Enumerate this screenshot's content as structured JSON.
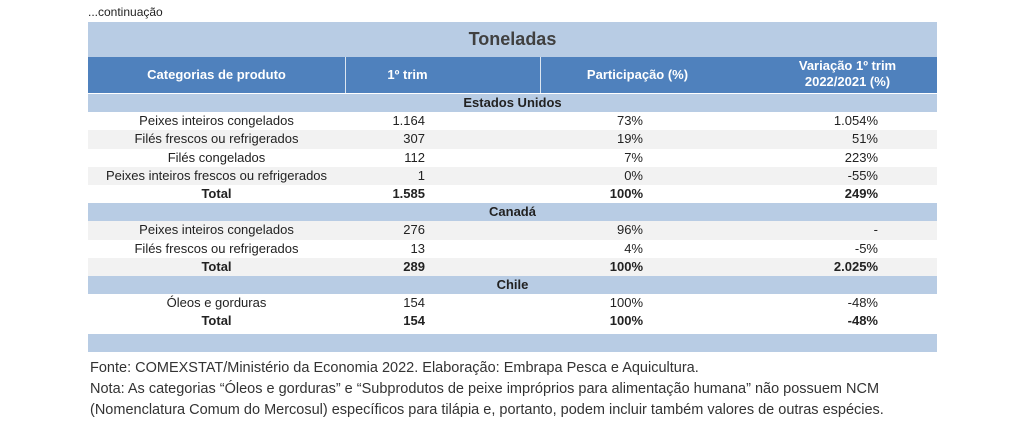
{
  "continuation": "...continuação",
  "table": {
    "title": "Toneladas",
    "columns": [
      "Categorias de produto",
      "1º trim",
      "Participação (%)",
      [
        "Variação 1º trim",
        "2022/2021 (%)"
      ]
    ],
    "sections": [
      {
        "name": "Estados Unidos",
        "rows": [
          [
            "Peixes inteiros congelados",
            "1.164",
            "73%",
            "1.054%"
          ],
          [
            "Filés frescos ou refrigerados",
            "307",
            "19%",
            "51%"
          ],
          [
            "Filés congelados",
            "112",
            "7%",
            "223%"
          ],
          [
            "Peixes inteiros frescos ou refrigerados",
            "1",
            "0%",
            "-55%"
          ]
        ],
        "total": [
          "Total",
          "1.585",
          "100%",
          "249%"
        ]
      },
      {
        "name": "Canadá",
        "rows": [
          [
            "Peixes inteiros congelados",
            "276",
            "96%",
            "-"
          ],
          [
            "Filés frescos ou refrigerados",
            "13",
            "4%",
            "-5%"
          ]
        ],
        "total": [
          "Total",
          "289",
          "100%",
          "2.025%"
        ]
      },
      {
        "name": "Chile",
        "rows": [
          [
            "Óleos e gorduras",
            "154",
            "100%",
            "-48%"
          ]
        ],
        "total": [
          "Total",
          "154",
          "100%",
          "-48%"
        ]
      }
    ]
  },
  "footnotes": [
    "Fonte: COMEXSTAT/Ministério da Economia 2022.  Elaboração: Embrapa Pesca e Aquicultura.",
    "Nota: As categorias “Óleos e gorduras” e “Subprodutos de peixe impróprios para alimentação humana” não possuem NCM",
    "(Nomenclatura Comum do Mercosul) específicos para tilápia e, portanto, podem incluir também valores de outras espécies."
  ]
}
